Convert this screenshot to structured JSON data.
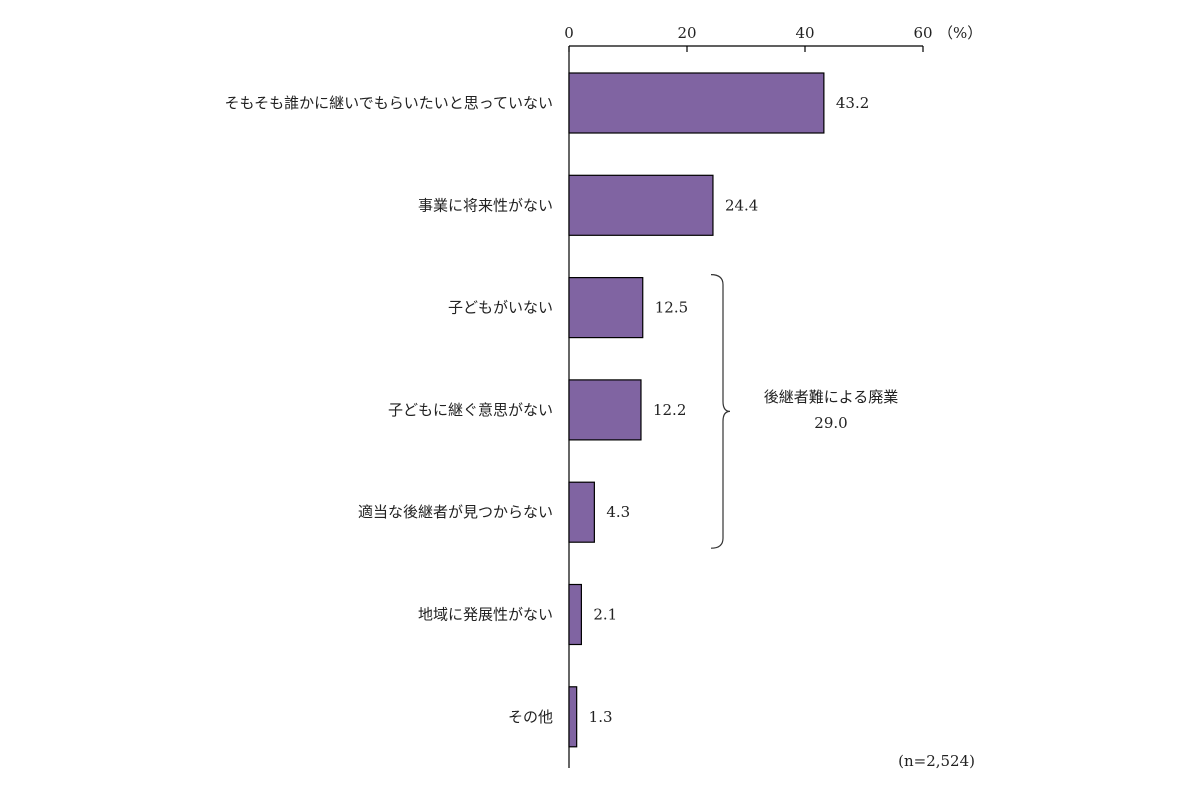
{
  "chart_data": {
    "type": "bar",
    "orientation": "horizontal",
    "categories": [
      "そもそも誰かに継いでもらいたいと思っていない",
      "事業に将来性がない",
      "子どもがいない",
      "子どもに継ぐ意思がない",
      "適当な後継者が見つからない",
      "地域に発展性がない",
      "その他"
    ],
    "values": [
      43.2,
      24.4,
      12.5,
      12.2,
      4.3,
      2.1,
      1.3
    ],
    "value_labels": [
      "43.2",
      "24.4",
      "12.5",
      "12.2",
      "4.3",
      "2.1",
      "1.3"
    ],
    "xlim": [
      0,
      60
    ],
    "ticks": [
      0,
      20,
      40,
      60
    ],
    "tick_labels": [
      "0",
      "20",
      "40",
      "60"
    ],
    "unit_label": "（%）",
    "axis_position": "top",
    "grid": false,
    "bar_color": "#8064a2",
    "bar_edge_color": "#000000",
    "note": "(n=2,524)",
    "bracket": {
      "label": "後継者難による廃業",
      "value_label": "29.0",
      "spans_categories": [
        "子どもがいない",
        "子どもに継ぐ意思がない",
        "適当な後継者が見つからない"
      ]
    }
  }
}
